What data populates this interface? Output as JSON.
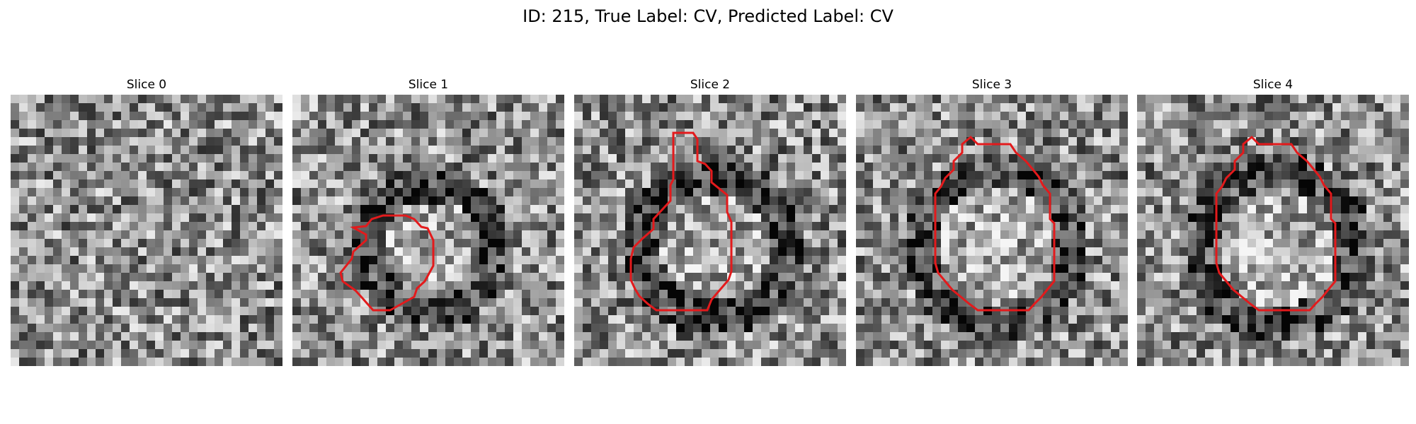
{
  "figure": {
    "title": "ID: 215, True Label: CV, Predicted Label: CV"
  },
  "panels": [
    {
      "title": "Slice 0",
      "has_contour": false
    },
    {
      "title": "Slice 1",
      "has_contour": true
    },
    {
      "title": "Slice 2",
      "has_contour": true
    },
    {
      "title": "Slice 3",
      "has_contour": true
    },
    {
      "title": "Slice 4",
      "has_contour": true
    }
  ],
  "colors": {
    "contour": "#e31a1c",
    "background": "#ffffff"
  }
}
